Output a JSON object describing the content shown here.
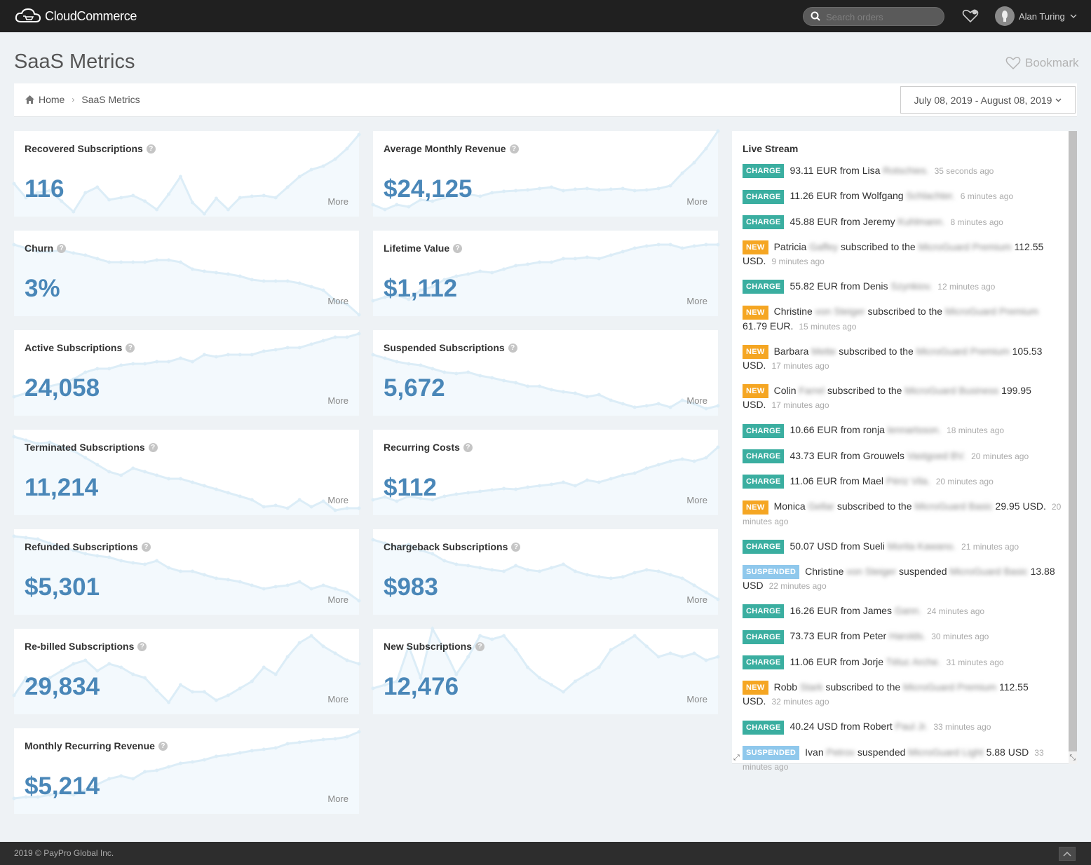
{
  "app": {
    "brand": "CloudCommerce",
    "search_placeholder": "Search orders",
    "user_name": "Alan Turing"
  },
  "page": {
    "title": "SaaS Metrics",
    "bookmark_label": "Bookmark"
  },
  "breadcrumb": {
    "home": "Home",
    "current": "SaaS Metrics"
  },
  "date_range": "July 08, 2019 - August 08, 2019",
  "colors": {
    "accent": "#4a87b8",
    "charge": "#3aaea0",
    "new": "#f5a623",
    "suspended": "#8fc8ec",
    "sparkline": "#dcedf7"
  },
  "icons": {
    "help": "question-circle-icon",
    "more": "more-link"
  },
  "metrics": [
    {
      "title": "Recovered Subscriptions",
      "value": "116",
      "more": "More"
    },
    {
      "title": "Average Monthly Revenue",
      "value": "$24,125",
      "more": "More"
    },
    {
      "title": "Churn",
      "value": "3%",
      "more": "More"
    },
    {
      "title": "Lifetime Value",
      "value": "$1,112",
      "more": "More"
    },
    {
      "title": "Active Subscriptions",
      "value": "24,058",
      "more": "More"
    },
    {
      "title": "Suspended Subscriptions",
      "value": "5,672",
      "more": "More"
    },
    {
      "title": "Terminated Subscriptions",
      "value": "11,214",
      "more": "More"
    },
    {
      "title": "Recurring Costs",
      "value": "$112",
      "more": "More"
    },
    {
      "title": "Refunded Subscriptions",
      "value": "$5,301",
      "more": "More"
    },
    {
      "title": "Chargeback Subscriptions",
      "value": "$983",
      "more": "More"
    },
    {
      "title": "Re-billed Subscriptions",
      "value": "29,834",
      "more": "More"
    },
    {
      "title": "New Subscriptions",
      "value": "12,476",
      "more": "More"
    },
    {
      "title": "Monthly Recurring Revenue",
      "value": "$5,214",
      "more": "More"
    }
  ],
  "live_stream": {
    "title": "Live Stream",
    "events": [
      {
        "type": "CHARGE",
        "text": "93.11 EUR from Lisa",
        "blurred": "Rotschies.",
        "time": "35 seconds ago"
      },
      {
        "type": "CHARGE",
        "text": "11.26 EUR from Wolfgang",
        "blurred": "Schlachter.",
        "time": "6 minutes ago"
      },
      {
        "type": "CHARGE",
        "text": "45.88 EUR from Jeremy",
        "blurred": "Kuhlmann.",
        "time": "8 minutes ago"
      },
      {
        "type": "NEW",
        "text": "Patricia",
        "blurred": "Gaffey",
        "text2": "subscribed to the",
        "blurred2": "MicroGuard Premium",
        "text3": "112.55 USD.",
        "time": "9 minutes ago"
      },
      {
        "type": "CHARGE",
        "text": "55.82 EUR from Denis",
        "blurred": "Szynkiov.",
        "time": "12 minutes ago"
      },
      {
        "type": "NEW",
        "text": "Christine",
        "blurred": "von Steiger",
        "text2": "subscribed to the",
        "blurred2": "MicroGuard Premium",
        "text3": "61.79 EUR.",
        "time": "15 minutes ago"
      },
      {
        "type": "NEW",
        "text": "Barbara",
        "blurred": "Mette",
        "text2": "subscribed to the",
        "blurred2": "MicroGuard Premium",
        "text3": "105.53 USD.",
        "time": "17 minutes ago"
      },
      {
        "type": "NEW",
        "text": "Colin",
        "blurred": "Farrel",
        "text2": "subscribed to the",
        "blurred2": "MicroGuard Business",
        "text3": "199.95 USD.",
        "time": "17 minutes ago"
      },
      {
        "type": "CHARGE",
        "text": "10.66 EUR from ronja",
        "blurred": "lennartsson.",
        "time": "18 minutes ago"
      },
      {
        "type": "CHARGE",
        "text": "43.73 EUR from Grouwels",
        "blurred": "Vastgoed BV.",
        "time": "20 minutes ago"
      },
      {
        "type": "CHARGE",
        "text": "11.06 EUR from Mael",
        "blurred": "Périz Vila.",
        "time": "20 minutes ago"
      },
      {
        "type": "NEW",
        "text": "Monica",
        "blurred": "Gellar",
        "text2": "subscribed to the",
        "blurred2": "MicroGuard Basic",
        "text3": "29.95 USD.",
        "time": "20 minutes ago"
      },
      {
        "type": "CHARGE",
        "text": "50.07 USD from Sueli",
        "blurred": "Morita Kawano.",
        "time": "21 minutes ago"
      },
      {
        "type": "SUSPENDED",
        "text": "Christine",
        "blurred": "von Steiger",
        "text2": "suspended",
        "blurred2": "MicroGuard Basic",
        "text3": "13.88 USD",
        "time": "22 minutes ago"
      },
      {
        "type": "CHARGE",
        "text": "16.26 EUR from James",
        "blurred": "Gann.",
        "time": "24 minutes ago"
      },
      {
        "type": "CHARGE",
        "text": "73.73 EUR from Peter",
        "blurred": "Harolds.",
        "time": "30 minutes ago"
      },
      {
        "type": "CHARGE",
        "text": "11.06 EUR from Jorje",
        "blurred": "Téluc Arche.",
        "time": "31 minutes ago"
      },
      {
        "type": "NEW",
        "text": "Robb",
        "blurred": "Stark",
        "text2": "subscribed to the",
        "blurred2": "MicroGuard Premium",
        "text3": "112.55 USD.",
        "time": "32 minutes ago"
      },
      {
        "type": "CHARGE",
        "text": "40.24 USD from Robert",
        "blurred": "Paul Jr.",
        "time": "33 minutes ago"
      },
      {
        "type": "SUSPENDED",
        "text": "Ivan",
        "blurred": "Petrov",
        "text2": "suspended",
        "blurred2": "MicroGuard Light",
        "text3": "5.88 USD",
        "time": "33 minutes ago"
      }
    ]
  },
  "footer": {
    "copyright": "2019 © PayPro Global Inc."
  }
}
